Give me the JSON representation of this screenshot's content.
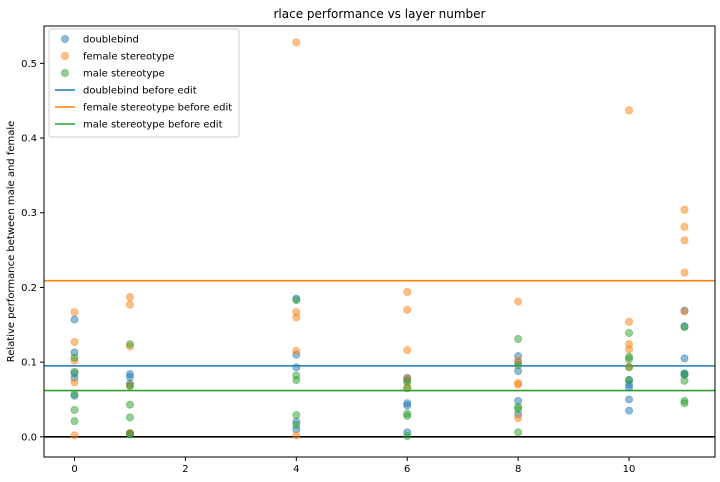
{
  "chart_data": {
    "type": "scatter",
    "title": "rlace performance vs layer number",
    "xlabel": "",
    "ylabel": "Relative performance between male and female",
    "xlim": [
      -0.55,
      11.55
    ],
    "ylim": [
      -0.027,
      0.55
    ],
    "xticks": [
      0,
      2,
      4,
      6,
      8,
      10
    ],
    "yticks": [
      0.0,
      0.1,
      0.2,
      0.3,
      0.4,
      0.5
    ],
    "xtick_labels": [
      "0",
      "2",
      "4",
      "6",
      "8",
      "10"
    ],
    "ytick_labels": [
      "0.0",
      "0.1",
      "0.2",
      "0.3",
      "0.4",
      "0.5"
    ],
    "grid": false,
    "legend_position": "top-left",
    "series": [
      {
        "name": "doublebind",
        "color": "#1f77b4",
        "points": [
          [
            0,
            0.157
          ],
          [
            0,
            0.113
          ],
          [
            0,
            0.085
          ],
          [
            0,
            0.079
          ],
          [
            0,
            0.055
          ],
          [
            1,
            0.084
          ],
          [
            1,
            0.08
          ],
          [
            1,
            0.071
          ],
          [
            1,
            0.005
          ],
          [
            1,
            0.003
          ],
          [
            4,
            0.185
          ],
          [
            4,
            0.11
          ],
          [
            4,
            0.093
          ],
          [
            4,
            0.02
          ],
          [
            4,
            0.01
          ],
          [
            6,
            0.079
          ],
          [
            6,
            0.076
          ],
          [
            6,
            0.045
          ],
          [
            6,
            0.042
          ],
          [
            6,
            0.006
          ],
          [
            8,
            0.108
          ],
          [
            8,
            0.1
          ],
          [
            8,
            0.088
          ],
          [
            8,
            0.048
          ],
          [
            8,
            0.03
          ],
          [
            10,
            0.076
          ],
          [
            10,
            0.07
          ],
          [
            10,
            0.066
          ],
          [
            10,
            0.05
          ],
          [
            10,
            0.035
          ],
          [
            11,
            0.169
          ],
          [
            11,
            0.148
          ],
          [
            11,
            0.105
          ],
          [
            11,
            0.085
          ],
          [
            11,
            0.083
          ]
        ]
      },
      {
        "name": "female stereotype",
        "color": "#ff7f0e",
        "points": [
          [
            0,
            0.167
          ],
          [
            0,
            0.127
          ],
          [
            0,
            0.102
          ],
          [
            0,
            0.073
          ],
          [
            0,
            0.002
          ],
          [
            1,
            0.187
          ],
          [
            1,
            0.177
          ],
          [
            1,
            0.121
          ],
          [
            1,
            0.069
          ],
          [
            1,
            0.005
          ],
          [
            4,
            0.528
          ],
          [
            4,
            0.167
          ],
          [
            4,
            0.16
          ],
          [
            4,
            0.115
          ],
          [
            4,
            0.002
          ],
          [
            6,
            0.194
          ],
          [
            6,
            0.17
          ],
          [
            6,
            0.116
          ],
          [
            6,
            0.078
          ],
          [
            6,
            0.067
          ],
          [
            8,
            0.181
          ],
          [
            8,
            0.102
          ],
          [
            8,
            0.072
          ],
          [
            8,
            0.07
          ],
          [
            8,
            0.025
          ],
          [
            10,
            0.437
          ],
          [
            10,
            0.154
          ],
          [
            10,
            0.124
          ],
          [
            10,
            0.117
          ],
          [
            10,
            0.094
          ],
          [
            11,
            0.304
          ],
          [
            11,
            0.281
          ],
          [
            11,
            0.263
          ],
          [
            11,
            0.22
          ],
          [
            11,
            0.168
          ]
        ]
      },
      {
        "name": "male stereotype",
        "color": "#2ca02c",
        "points": [
          [
            0,
            0.106
          ],
          [
            0,
            0.087
          ],
          [
            0,
            0.057
          ],
          [
            0,
            0.036
          ],
          [
            0,
            0.021
          ],
          [
            1,
            0.124
          ],
          [
            1,
            0.068
          ],
          [
            1,
            0.043
          ],
          [
            1,
            0.026
          ],
          [
            1,
            0.004
          ],
          [
            4,
            0.183
          ],
          [
            4,
            0.082
          ],
          [
            4,
            0.076
          ],
          [
            4,
            0.029
          ],
          [
            4,
            0.016
          ],
          [
            6,
            0.074
          ],
          [
            6,
            0.065
          ],
          [
            6,
            0.031
          ],
          [
            6,
            0.028
          ],
          [
            6,
            0.001
          ],
          [
            8,
            0.131
          ],
          [
            8,
            0.096
          ],
          [
            8,
            0.04
          ],
          [
            8,
            0.037
          ],
          [
            8,
            0.006
          ],
          [
            10,
            0.139
          ],
          [
            10,
            0.107
          ],
          [
            10,
            0.104
          ],
          [
            10,
            0.093
          ],
          [
            10,
            0.076
          ],
          [
            11,
            0.147
          ],
          [
            11,
            0.084
          ],
          [
            11,
            0.075
          ],
          [
            11,
            0.048
          ],
          [
            11,
            0.045
          ]
        ]
      }
    ],
    "hlines": [
      {
        "name": "doublebind before edit",
        "y": 0.095,
        "color": "#1f77b4"
      },
      {
        "name": "female stereotype before edit",
        "y": 0.209,
        "color": "#ff7f0e"
      },
      {
        "name": "male stereotype before edit",
        "y": 0.062,
        "color": "#2ca02c"
      },
      {
        "name": "",
        "y": 0.0,
        "color": "#000000"
      }
    ]
  }
}
